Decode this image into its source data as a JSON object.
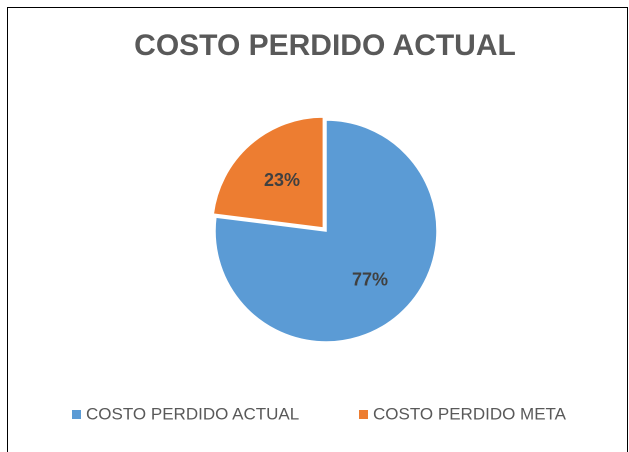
{
  "chart_data": {
    "type": "pie",
    "title": "COSTO PERDIDO ACTUAL",
    "categories": [
      "COSTO PERDIDO ACTUAL",
      "COSTO PERDIDO META"
    ],
    "values": [
      77,
      23
    ],
    "value_labels": [
      "77%",
      "23%"
    ],
    "colors": [
      "#5b9bd5",
      "#ed7d31"
    ],
    "legend": "bottom"
  }
}
